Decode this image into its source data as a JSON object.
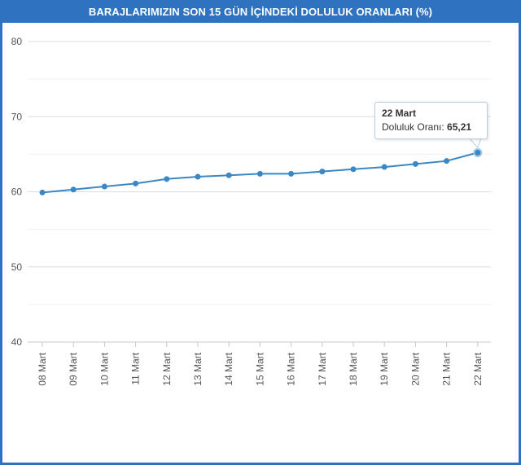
{
  "title": "BARAJLARIMIZIN SON 15 GÜN İÇİNDEKİ DOLULUK ORANLARI (%)",
  "colors": {
    "accent": "#2f73c0",
    "line": "#3a87c3",
    "grid": "#e3e3e3"
  },
  "tooltip": {
    "date": "22 Mart",
    "label": "Doluluk Oranı:",
    "value": "65,21"
  },
  "chart_data": {
    "type": "line",
    "title": "BARAJLARIMIZIN SON 15 GÜN İÇİNDEKİ DOLULUK ORANLARI (%)",
    "xlabel": "",
    "ylabel": "",
    "ylim": [
      40,
      80
    ],
    "yticks": [
      40,
      50,
      60,
      70,
      80
    ],
    "grid": true,
    "legend": "none",
    "categories": [
      "08 Mart",
      "09 Mart",
      "10 Mart",
      "11 Mart",
      "12 Mart",
      "13 Mart",
      "14 Mart",
      "15 Mart",
      "16 Mart",
      "17 Mart",
      "18 Mart",
      "19 Mart",
      "20 Mart",
      "21 Mart",
      "22 Mart"
    ],
    "series": [
      {
        "values": [
          59.9,
          60.3,
          60.7,
          61.1,
          61.7,
          62.0,
          62.2,
          62.4,
          62.4,
          62.7,
          63.0,
          63.3,
          63.7,
          64.1,
          65.21
        ]
      }
    ]
  }
}
